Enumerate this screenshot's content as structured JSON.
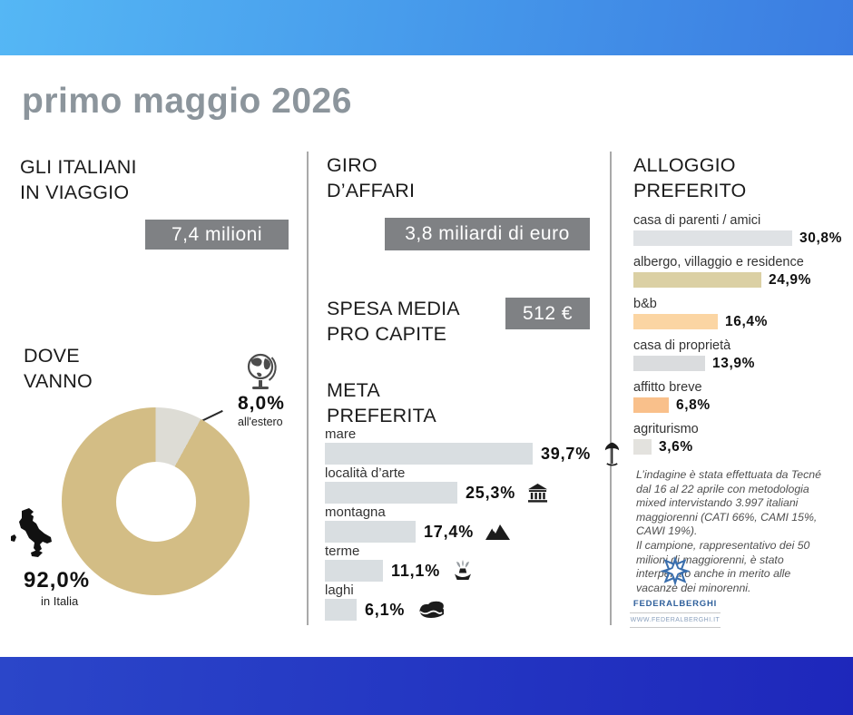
{
  "page": {
    "title": "primo maggio 2026"
  },
  "sections": {
    "travelers": {
      "heading": [
        "GLI ITALIANI",
        "IN VIAGGIO"
      ],
      "value": "7,4 milioni"
    },
    "where": {
      "heading": [
        "DOVE",
        "VANNO"
      ]
    },
    "business": {
      "heading": [
        "GIRO",
        "D’AFFARI"
      ],
      "value": "3,8 miliardi di euro"
    },
    "spend": {
      "heading": [
        "SPESA MEDIA",
        "PRO CAPITE"
      ],
      "value": "512 €"
    },
    "destination": {
      "heading": [
        "META",
        "PREFERITA"
      ]
    },
    "lodging": {
      "heading": [
        "ALLOGGIO",
        "PREFERITO"
      ]
    }
  },
  "chart_data": [
    {
      "type": "pie",
      "title": "DOVE VANNO",
      "labels": [
        "in Italia",
        "all'estero"
      ],
      "values": [
        92.0,
        8.0
      ],
      "value_labels": [
        "92,0%",
        "8,0%"
      ],
      "colors": [
        "#d3bd85",
        "#dddcd5"
      ],
      "donut": true,
      "start_angle_deg": 0,
      "legend_position": "callout-labels"
    },
    {
      "type": "bar",
      "title": "META PREFERITA",
      "orientation": "horizontal",
      "categories": [
        "mare",
        "località d’arte",
        "montagna",
        "terme",
        "laghi"
      ],
      "values": [
        39.7,
        25.3,
        17.4,
        11.1,
        6.1
      ],
      "value_labels": [
        "39,7%",
        "25,3%",
        "17,4%",
        "11,1%",
        "6,1%"
      ],
      "icons": [
        "beach-umbrella",
        "museum",
        "mountains",
        "fountain",
        "lake"
      ],
      "bar_color": "#d9dee1",
      "xlim": [
        0,
        40
      ],
      "grid": false
    },
    {
      "type": "bar",
      "title": "ALLOGGIO PREFERITO",
      "orientation": "horizontal",
      "categories": [
        "casa di parenti / amici",
        "albergo, villaggio e residence",
        "b&b",
        "casa di proprietà",
        "affitto breve",
        "agriturismo"
      ],
      "values": [
        30.8,
        24.9,
        16.4,
        13.9,
        6.8,
        3.6
      ],
      "value_labels": [
        "30,8%",
        "24,9%",
        "16,4%",
        "13,9%",
        "6,8%",
        "3,6%"
      ],
      "bar_colors": [
        "#dfe2e5",
        "#dbd0a4",
        "#fbd5a3",
        "#dadcde",
        "#f9c08b",
        "#e3e2de"
      ],
      "xlim": [
        0,
        31
      ],
      "grid": false
    }
  ],
  "note": {
    "paragraphs": [
      "L’indagine è stata effettuata da Tecné dal 16 al 22 aprile con metodologia mixed intervistando 3.997 italiani maggiorenni (CATI 66%, CAMI 15%, CAWI 19%).",
      "Il campione, rappresentativo dei 50 milioni di maggiorenni, è stato interpellato anche in merito alle vacanze dei minorenni."
    ]
  },
  "logo": {
    "name": "FEDERALBERGHI",
    "url": "WWW.FEDERALBERGHI.IT"
  },
  "colors": {
    "top_band": [
      "#55b7f5",
      "#3b7ce1"
    ],
    "bottom_band": [
      "#2b46c9",
      "#1e27bb"
    ],
    "title_gray": "#8c959c",
    "value_box_gray": "#7f8184",
    "logo_blue": "#2e5f9b"
  }
}
